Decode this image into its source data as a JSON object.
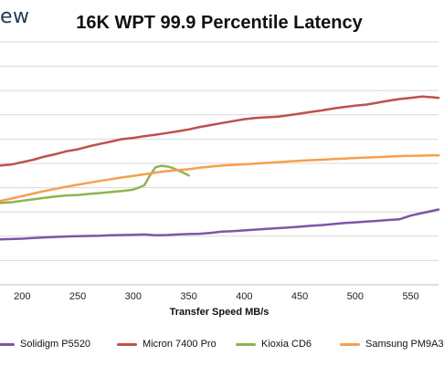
{
  "brand": {
    "text": "ew"
  },
  "chart_data": {
    "type": "line",
    "title": "16K WPT 99.9 Percentile Latency",
    "xlabel": "Transfer Speed MB/s",
    "ylabel": "",
    "x_ticks": [
      200,
      250,
      300,
      350,
      400,
      450,
      500,
      550
    ],
    "xlim": [
      180,
      575
    ],
    "ylim": [
      0,
      10
    ],
    "grid": {
      "horizontal": true,
      "vertical": false
    },
    "legend_placement": "bottom",
    "series": [
      {
        "name": "Solidigm P5520",
        "color": "#7b57a6",
        "x": [
          180,
          200,
          210,
          220,
          230,
          240,
          250,
          260,
          270,
          280,
          290,
          300,
          310,
          320,
          330,
          340,
          350,
          360,
          370,
          380,
          390,
          400,
          410,
          420,
          430,
          440,
          450,
          460,
          470,
          480,
          490,
          500,
          510,
          520,
          530,
          540,
          550,
          560,
          570,
          575
        ],
        "y": [
          1.87,
          1.9,
          1.93,
          1.95,
          1.97,
          1.99,
          2.0,
          2.01,
          2.02,
          2.04,
          2.05,
          2.06,
          2.07,
          2.04,
          2.05,
          2.07,
          2.09,
          2.1,
          2.14,
          2.19,
          2.21,
          2.24,
          2.27,
          2.3,
          2.33,
          2.36,
          2.39,
          2.43,
          2.46,
          2.5,
          2.54,
          2.57,
          2.6,
          2.63,
          2.67,
          2.7,
          2.85,
          2.95,
          3.05,
          3.1
        ]
      },
      {
        "name": "Micron 7400 Pro",
        "color": "#c0504d",
        "x": [
          180,
          190,
          200,
          210,
          220,
          230,
          240,
          250,
          260,
          270,
          280,
          290,
          300,
          310,
          320,
          330,
          340,
          350,
          360,
          370,
          380,
          390,
          400,
          410,
          420,
          430,
          440,
          450,
          460,
          470,
          480,
          490,
          500,
          510,
          520,
          530,
          540,
          550,
          560,
          570,
          575
        ],
        "y": [
          4.91,
          4.95,
          5.05,
          5.15,
          5.28,
          5.38,
          5.5,
          5.58,
          5.7,
          5.8,
          5.9,
          6.0,
          6.05,
          6.12,
          6.18,
          6.25,
          6.32,
          6.4,
          6.5,
          6.58,
          6.66,
          6.74,
          6.82,
          6.87,
          6.9,
          6.92,
          6.98,
          7.05,
          7.12,
          7.18,
          7.26,
          7.32,
          7.38,
          7.42,
          7.5,
          7.58,
          7.65,
          7.7,
          7.75,
          7.72,
          7.7
        ]
      },
      {
        "name": "Kioxia CD6",
        "color": "#8fb44e",
        "x": [
          180,
          190,
          200,
          210,
          220,
          230,
          240,
          250,
          260,
          270,
          280,
          290,
          300,
          305,
          310,
          315,
          320,
          325,
          330,
          335,
          340,
          345,
          350
        ],
        "y": [
          3.37,
          3.4,
          3.46,
          3.52,
          3.58,
          3.64,
          3.68,
          3.7,
          3.74,
          3.78,
          3.82,
          3.86,
          3.92,
          4.0,
          4.1,
          4.5,
          4.84,
          4.9,
          4.88,
          4.82,
          4.72,
          4.62,
          4.5
        ]
      },
      {
        "name": "Samsung PM9A3",
        "color": "#f6a04d",
        "x": [
          180,
          190,
          200,
          210,
          220,
          230,
          240,
          250,
          260,
          270,
          280,
          290,
          300,
          310,
          320,
          330,
          340,
          350,
          360,
          370,
          380,
          390,
          400,
          410,
          420,
          430,
          440,
          450,
          460,
          470,
          480,
          490,
          500,
          510,
          520,
          530,
          540,
          550,
          560,
          570,
          575
        ],
        "y": [
          3.45,
          3.55,
          3.65,
          3.76,
          3.86,
          3.95,
          4.04,
          4.12,
          4.2,
          4.28,
          4.35,
          4.42,
          4.48,
          4.55,
          4.62,
          4.68,
          4.72,
          4.76,
          4.82,
          4.87,
          4.91,
          4.94,
          4.96,
          4.99,
          5.02,
          5.05,
          5.08,
          5.11,
          5.13,
          5.15,
          5.18,
          5.2,
          5.22,
          5.24,
          5.26,
          5.28,
          5.3,
          5.31,
          5.32,
          5.33,
          5.33
        ]
      }
    ]
  }
}
